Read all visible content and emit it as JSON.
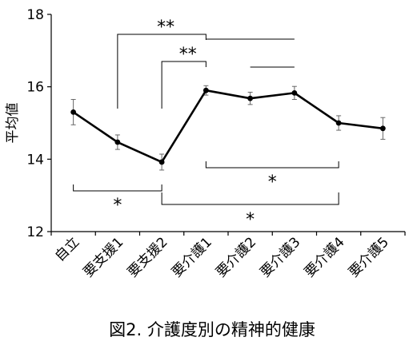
{
  "chart_data": {
    "type": "line",
    "caption": "図2. 介護度別の精神的健康",
    "ylabel": "平均値",
    "ylim": [
      12,
      18
    ],
    "yticks": [
      "12",
      "14",
      "16",
      "18"
    ],
    "categories": [
      "自立",
      "要支援1",
      "要支援2",
      "要介護1",
      "要介護2",
      "要介護3",
      "要介護4",
      "要介護5"
    ],
    "series": [
      {
        "values": [
          15.3,
          14.47,
          13.92,
          15.9,
          15.68,
          15.83,
          15.0,
          14.85
        ],
        "errors": [
          0.35,
          0.2,
          0.22,
          0.13,
          0.17,
          0.18,
          0.2,
          0.3
        ]
      }
    ],
    "comparisons": [
      {
        "from": 1,
        "to": 3,
        "label": "**",
        "position": "above"
      },
      {
        "from": 2,
        "to": 3,
        "label": "**",
        "position": "above"
      },
      {
        "from": 3,
        "to": 5,
        "label": "",
        "position": "above"
      },
      {
        "from": 4,
        "to": 5,
        "label": "",
        "position": "above"
      },
      {
        "from": 0,
        "to": 2,
        "label": "*",
        "position": "below"
      },
      {
        "from": 3,
        "to": 6,
        "label": "*",
        "position": "below"
      },
      {
        "from": 2,
        "to": 6,
        "label": "*",
        "position": "below"
      }
    ],
    "grid": false,
    "legend": "none"
  }
}
